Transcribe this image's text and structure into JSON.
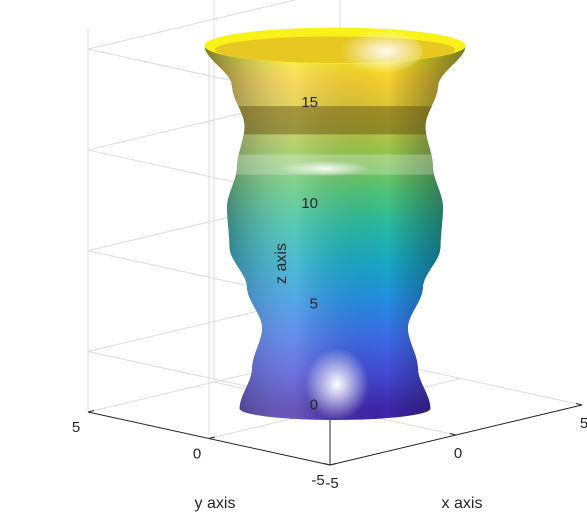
{
  "chart_data": {
    "type": "surface",
    "title": "",
    "xlabel": "x axis",
    "ylabel": "y axis",
    "zlabel": "z axis",
    "xlim": [
      -5,
      5
    ],
    "ylim": [
      -5,
      5
    ],
    "zlim": [
      -3,
      16
    ],
    "x_ticks": [
      "-5",
      "0",
      "5"
    ],
    "y_ticks": [
      "-5",
      "0",
      "5"
    ],
    "z_ticks": [
      "0",
      "5",
      "10",
      "15"
    ],
    "grid": true,
    "colormap": "parula",
    "surface": "vase-shaped surface of revolution; radius varies with z",
    "profile": [
      {
        "z": -3,
        "r": 3.8
      },
      {
        "z": -1,
        "r": 3.3
      },
      {
        "z": 1,
        "r": 2.9
      },
      {
        "z": 3,
        "r": 3.5
      },
      {
        "z": 5,
        "r": 4.2
      },
      {
        "z": 7,
        "r": 4.3
      },
      {
        "z": 9,
        "r": 3.9
      },
      {
        "z": 11,
        "r": 3.6
      },
      {
        "z": 13,
        "r": 4.1
      },
      {
        "z": 15,
        "r": 5.2
      }
    ]
  }
}
